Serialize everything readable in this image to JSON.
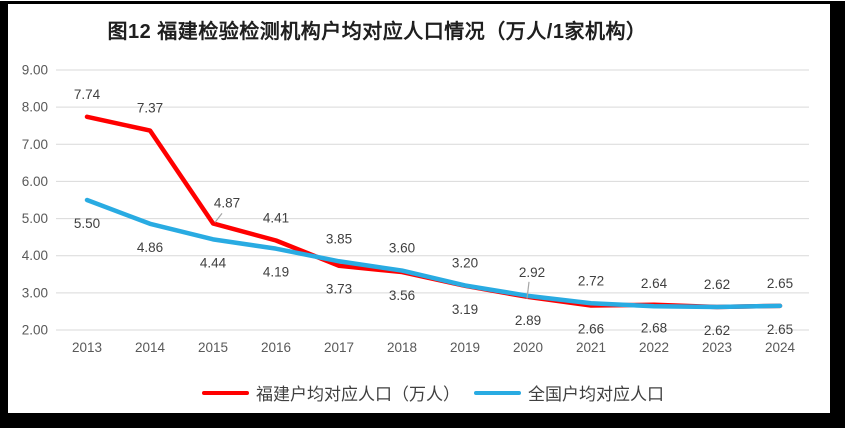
{
  "chart_data": {
    "type": "line",
    "title": "图12 福建检验检测机构户均对应人口情况（万人/1家机构）",
    "categories": [
      "2013",
      "2014",
      "2015",
      "2016",
      "2017",
      "2018",
      "2019",
      "2020",
      "2021",
      "2022",
      "2023",
      "2024"
    ],
    "series": [
      {
        "name": "福建户均对应人口（万人）",
        "color": "#FF0000",
        "values": [
          7.74,
          7.37,
          4.87,
          4.41,
          3.73,
          3.56,
          3.19,
          2.89,
          2.66,
          2.68,
          2.62,
          2.65
        ],
        "label_sides": [
          "above",
          "above",
          "above",
          "above",
          "below",
          "below",
          "below",
          "below",
          "below",
          "below",
          "below",
          "below"
        ],
        "callout_index": 2
      },
      {
        "name": "全国户均对应人口",
        "color": "#29ABE2",
        "values": [
          5.5,
          4.86,
          4.44,
          4.19,
          3.85,
          3.6,
          3.2,
          2.92,
          2.72,
          2.64,
          2.62,
          2.65
        ],
        "label_sides": [
          "below",
          "below",
          "below",
          "below",
          "above",
          "above",
          "above",
          "above",
          "above",
          "above",
          "above",
          "above"
        ],
        "callout_index": 7
      }
    ],
    "ylim": [
      2.0,
      9.0
    ],
    "ytick_labels": [
      "9.00",
      "8.00",
      "7.00",
      "6.00",
      "5.00",
      "4.00",
      "3.00",
      "2.00"
    ],
    "xlabel": "",
    "ylabel": "",
    "grid": true,
    "legend_position": "bottom",
    "colors": {
      "gridline": "#D9D9D9",
      "axis_text": "#595959",
      "data_label": "#404040",
      "leader_line": "#A6A6A6",
      "title_text": "#1F1F1F",
      "frame": "#000000",
      "background": "#FFFFFF"
    }
  }
}
